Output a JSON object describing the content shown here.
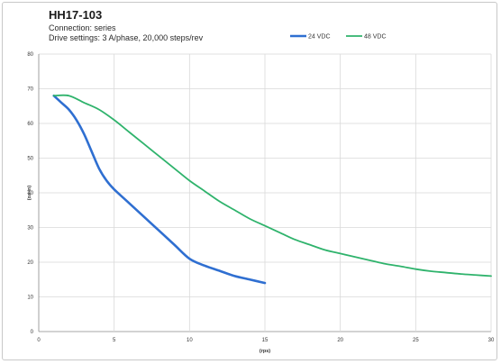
{
  "chart_data": {
    "type": "line",
    "title": "HH17-103",
    "subtitle_lines": [
      "Connection: series",
      "Drive settings: 3 A/phase, 20,000 steps/rev"
    ],
    "xlabel": "(rps)",
    "ylabel": "(oz-in)",
    "xlim": [
      0,
      30
    ],
    "ylim": [
      0,
      80
    ],
    "xticks": [
      0,
      5,
      10,
      15,
      20,
      25,
      30
    ],
    "yticks": [
      0,
      10,
      20,
      30,
      40,
      50,
      60,
      70,
      80
    ],
    "grid": true,
    "legend_position": "top-right",
    "series": [
      {
        "name": "24 VDC",
        "color": "#2f6fd1",
        "x": [
          1,
          1.5,
          2,
          2.5,
          3,
          3.5,
          4,
          4.5,
          5,
          6,
          7,
          8,
          9,
          10,
          11,
          12,
          13,
          14,
          15
        ],
        "y": [
          68,
          66,
          64,
          61,
          57,
          52,
          47,
          43.5,
          41,
          37,
          33,
          29,
          25,
          21,
          19,
          17.5,
          16,
          15,
          14
        ]
      },
      {
        "name": "48 VDC",
        "color": "#2fb36c",
        "x": [
          1,
          2,
          3,
          4,
          5,
          6,
          7,
          8,
          9,
          10,
          11,
          12,
          13,
          14,
          15,
          16,
          17,
          18,
          19,
          20,
          21,
          22,
          23,
          24,
          25,
          26,
          27,
          28,
          29,
          30
        ],
        "y": [
          68,
          68,
          66,
          64,
          61,
          57.5,
          54,
          50.5,
          47,
          43.5,
          40.5,
          37.5,
          35,
          32.5,
          30.5,
          28.5,
          26.5,
          25,
          23.5,
          22.5,
          21.5,
          20.5,
          19.5,
          18.8,
          18,
          17.4,
          17,
          16.6,
          16.3,
          16
        ]
      }
    ]
  }
}
